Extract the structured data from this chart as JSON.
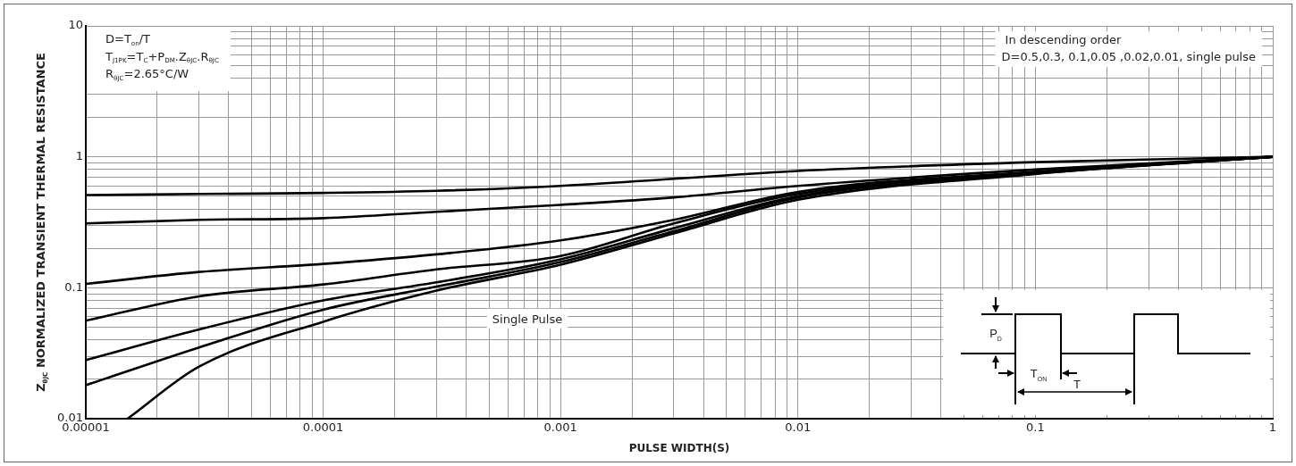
{
  "chart_data": {
    "type": "line",
    "xlabel": "PULSE WIDTH(S)",
    "ylabel": "Z$_{θJC}$ NORMALIZED TRANSIENT THERMAL RESISTANCE",
    "log": "xy",
    "grid": true,
    "legend": false,
    "marker": "none",
    "line_style": "solid",
    "xlim": [
      1e-05,
      1
    ],
    "ylim": [
      0.01,
      10
    ],
    "xticks": [
      {
        "value": 1e-05,
        "label": "0.00001"
      },
      {
        "value": 2e-05,
        "label": null
      },
      {
        "value": 3e-05,
        "label": null
      },
      {
        "value": 4e-05,
        "label": null
      },
      {
        "value": 5e-05,
        "label": null
      },
      {
        "value": 6e-05,
        "label": null
      },
      {
        "value": 7e-05,
        "label": null
      },
      {
        "value": 8e-05,
        "label": null
      },
      {
        "value": 9e-05,
        "label": null
      },
      0.0001,
      {
        "value": 0.0002,
        "label": null
      },
      {
        "value": 0.0003,
        "label": null
      },
      {
        "value": 0.0004,
        "label": null
      },
      {
        "value": 0.0005,
        "label": null
      },
      {
        "value": 0.0006,
        "label": null
      },
      {
        "value": 0.0007,
        "label": null
      },
      {
        "value": 0.0008,
        "label": null
      },
      {
        "value": 0.0009,
        "label": null
      },
      0.001,
      {
        "value": 0.002,
        "label": null
      },
      {
        "value": 0.003,
        "label": null
      },
      {
        "value": 0.004,
        "label": null
      },
      {
        "value": 0.005,
        "label": null
      },
      {
        "value": 0.006,
        "label": null
      },
      {
        "value": 0.007,
        "label": null
      },
      {
        "value": 0.008,
        "label": null
      },
      {
        "value": 0.009,
        "label": null
      },
      0.01,
      {
        "value": 0.02,
        "label": null
      },
      {
        "value": 0.03,
        "label": null
      },
      {
        "value": 0.04,
        "label": null
      },
      {
        "value": 0.05,
        "label": null
      },
      {
        "value": 0.06,
        "label": null
      },
      {
        "value": 0.07,
        "label": null
      },
      {
        "value": 0.08,
        "label": null
      },
      {
        "value": 0.09,
        "label": null
      },
      0.1,
      {
        "value": 0.2,
        "label": null
      },
      {
        "value": 0.3,
        "label": null
      },
      {
        "value": 0.4,
        "label": null
      },
      {
        "value": 0.5,
        "label": null
      },
      {
        "value": 0.6,
        "label": null
      },
      {
        "value": 0.7,
        "label": null
      },
      {
        "value": 0.8,
        "label": null
      },
      {
        "value": 0.9,
        "label": null
      },
      1
    ],
    "yticks": [
      0.01,
      {
        "value": 0.02,
        "label": null
      },
      {
        "value": 0.03,
        "label": null
      },
      {
        "value": 0.04,
        "label": null
      },
      {
        "value": 0.05,
        "label": null
      },
      {
        "value": 0.06,
        "label": null
      },
      {
        "value": 0.07,
        "label": null
      },
      {
        "value": 0.08,
        "label": null
      },
      {
        "value": 0.09,
        "label": null
      },
      0.1,
      {
        "value": 0.2,
        "label": null
      },
      {
        "value": 0.3,
        "label": null
      },
      {
        "value": 0.4,
        "label": null
      },
      {
        "value": 0.5,
        "label": null
      },
      {
        "value": 0.6,
        "label": null
      },
      {
        "value": 0.7,
        "label": null
      },
      {
        "value": 0.8,
        "label": null
      },
      {
        "value": 0.9,
        "label": null
      },
      1,
      {
        "value": 2,
        "label": null
      },
      {
        "value": 3,
        "label": null
      },
      {
        "value": 4,
        "label": null
      },
      {
        "value": 5,
        "label": null
      },
      {
        "value": 6,
        "label": null
      },
      {
        "value": 7,
        "label": null
      },
      {
        "value": 8,
        "label": null
      },
      {
        "value": 9,
        "label": null
      },
      10
    ],
    "x": [
      1e-05,
      3e-05,
      0.0001,
      0.0003,
      0.001,
      0.003,
      0.01,
      0.1,
      1
    ],
    "series": [
      {
        "color": "#000000",
        "values": [
          0.51,
          0.52,
          0.53,
          0.55,
          0.6,
          0.68,
          0.78,
          0.91,
          1
        ]
      },
      {
        "color": "#000000",
        "values": [
          0.31,
          0.33,
          0.34,
          0.38,
          0.43,
          0.49,
          0.6,
          0.8,
          1
        ]
      },
      {
        "color": "#000000",
        "values": [
          0.107,
          0.132,
          0.152,
          0.18,
          0.23,
          0.33,
          0.54,
          0.77,
          1
        ]
      },
      {
        "color": "#000000",
        "values": [
          0.056,
          0.086,
          0.106,
          0.138,
          0.175,
          0.31,
          0.52,
          0.76,
          1
        ]
      },
      {
        "color": "#000000",
        "values": [
          0.028,
          0.048,
          0.08,
          0.11,
          0.165,
          0.285,
          0.5,
          0.75,
          1
        ]
      },
      {
        "color": "#000000",
        "values": [
          0.018,
          0.035,
          0.068,
          0.102,
          0.157,
          0.27,
          0.49,
          0.745,
          1
        ]
      },
      {
        "color": "#000000",
        "x": [
          1.5e-05,
          3e-05,
          0.0001,
          0.0003,
          0.001,
          0.003,
          0.01,
          0.1,
          1
        ],
        "values": [
          0.01,
          0.025,
          0.055,
          0.095,
          0.15,
          0.26,
          0.47,
          0.74,
          1
        ]
      }
    ],
    "annotations": [
      "D=T$_{on}$/T",
      "T$_{J1PK}$=T$_{C}$+P$_{DM}$.Z$_{θJC}$.R$_{θJC}$",
      "R$_{θJC}$=2.65°C/W",
      "In descending order",
      "D=0.5,0.3, 0.1,0.05 ,0.02,0.01, single pulse",
      "Single Pulse",
      "P$_{D}$",
      "T$_{ON}$",
      "T"
    ]
  }
}
